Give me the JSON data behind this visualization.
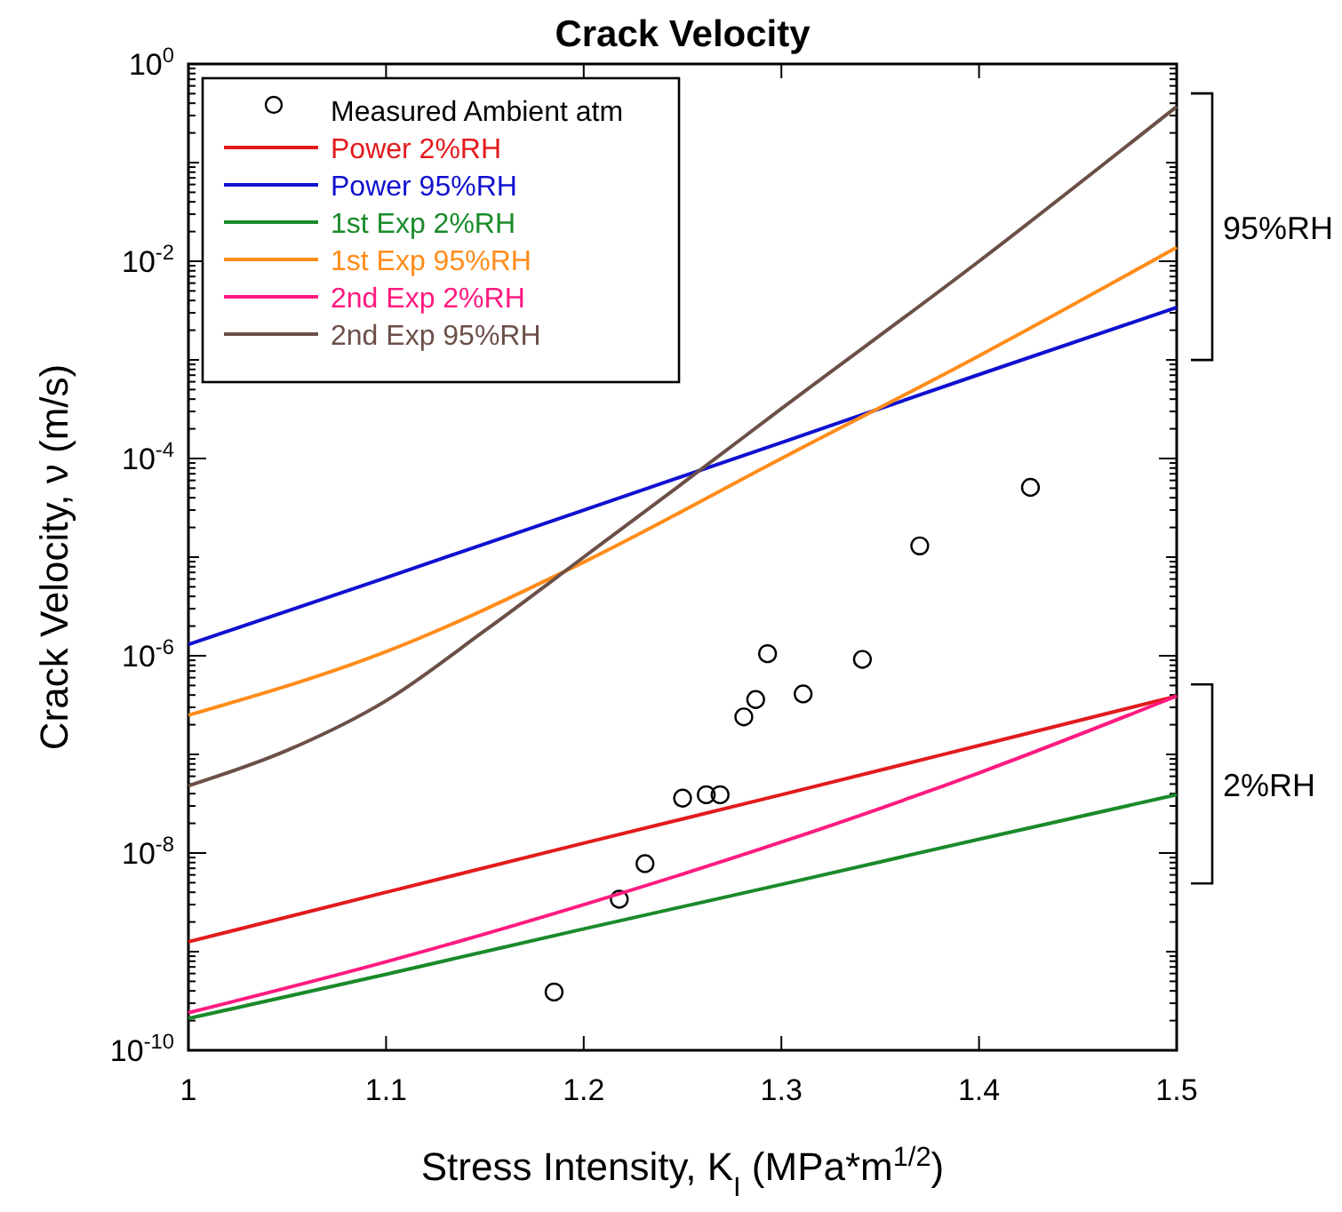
{
  "chart_data": {
    "type": "line",
    "title": "Crack Velocity",
    "xlabel": "Stress Intensity, K$_{I}$ (MPa*m$^{1/2}$)",
    "ylabel": "Crack Velocity, ν (m/s)",
    "log": "y",
    "xlim": [
      1,
      1.5
    ],
    "xticks": [
      1,
      1.1,
      1.2,
      1.3,
      1.4,
      1.5
    ],
    "ylim": [
      1e-10,
      1
    ],
    "yticks": [
      {
        "value": 1e-10,
        "label": "10$^{-10}$"
      },
      {
        "value": 1e-09,
        "label": null
      },
      {
        "value": 1e-08,
        "label": "10$^{-8}$"
      },
      {
        "value": 1e-07,
        "label": null
      },
      {
        "value": 1e-06,
        "label": "10$^{-6}$"
      },
      {
        "value": 1e-05,
        "label": null
      },
      {
        "value": 0.0001,
        "label": "10$^{-4}$"
      },
      {
        "value": 0.001,
        "label": null
      },
      {
        "value": 0.01,
        "label": "10$^{-2}$"
      },
      {
        "value": 0.1,
        "label": null
      },
      {
        "value": 1,
        "label": "10$^{0}$"
      }
    ],
    "grid": false,
    "legend": "top left",
    "line_style": "solid",
    "series": [
      {
        "name": "Measured Ambient atm",
        "type": "scatter",
        "marker": "circle",
        "color": "#000000",
        "x": [
          1.185,
          1.218,
          1.231,
          1.25,
          1.262,
          1.269,
          1.281,
          1.287,
          1.293,
          1.311,
          1.341,
          1.37,
          1.426
        ],
        "values": [
          3.9e-10,
          3.4e-09,
          7.8e-09,
          3.6e-08,
          3.9e-08,
          3.9e-08,
          2.4e-07,
          3.6e-07,
          1.05e-06,
          4.1e-07,
          9.2e-07,
          1.3e-05,
          5.1e-05
        ]
      },
      {
        "name": "Power 2%RH",
        "color": "#e31a1c",
        "x": [
          1,
          1.1,
          1.2,
          1.3,
          1.4,
          1.5
        ],
        "values": [
          1.26e-09,
          4e-09,
          1.26e-08,
          3.9e-08,
          1.23e-07,
          3.9e-07
        ]
      },
      {
        "name": "Power 95%RH",
        "color": "#1010d0",
        "x": [
          1,
          1.1,
          1.2,
          1.3,
          1.4,
          1.5
        ],
        "values": [
          1.3e-06,
          6.2e-06,
          3e-05,
          0.000145,
          0.00071,
          0.0034
        ]
      },
      {
        "name": "1st Exp 2%RH",
        "color": "#1a8a2a",
        "x": [
          1,
          1.1,
          1.2,
          1.3,
          1.4,
          1.5
        ],
        "values": [
          2.1e-10,
          5.9e-10,
          1.7e-09,
          4.8e-09,
          1.38e-08,
          3.9e-08
        ]
      },
      {
        "name": "1st Exp 95%RH",
        "color": "#ff8c1a",
        "x": [
          1,
          1.1,
          1.2,
          1.3,
          1.4,
          1.5
        ],
        "values": [
          2.5e-07,
          1.1e-06,
          8.9e-06,
          0.0001,
          0.0011,
          0.0138
        ]
      },
      {
        "name": "2nd Exp 2%RH",
        "color": "#ff1a80",
        "x": [
          1,
          1.1,
          1.2,
          1.3,
          1.4,
          1.5
        ],
        "values": [
          2.4e-10,
          7.9e-10,
          3e-09,
          1.29e-08,
          6.5e-08,
          3.9e-07
        ]
      },
      {
        "name": "2nd Exp 95%RH",
        "color": "#6b5048",
        "x": [
          1,
          1.05,
          1.1,
          1.15,
          1.2,
          1.25,
          1.3,
          1.4,
          1.5
        ],
        "values": [
          4.8e-08,
          1.1e-07,
          3.5e-07,
          1.8e-06,
          1e-05,
          5.6e-05,
          0.00032,
          0.01,
          0.37
        ]
      }
    ],
    "annotations": [
      "95%RH",
      "2%RH"
    ]
  }
}
